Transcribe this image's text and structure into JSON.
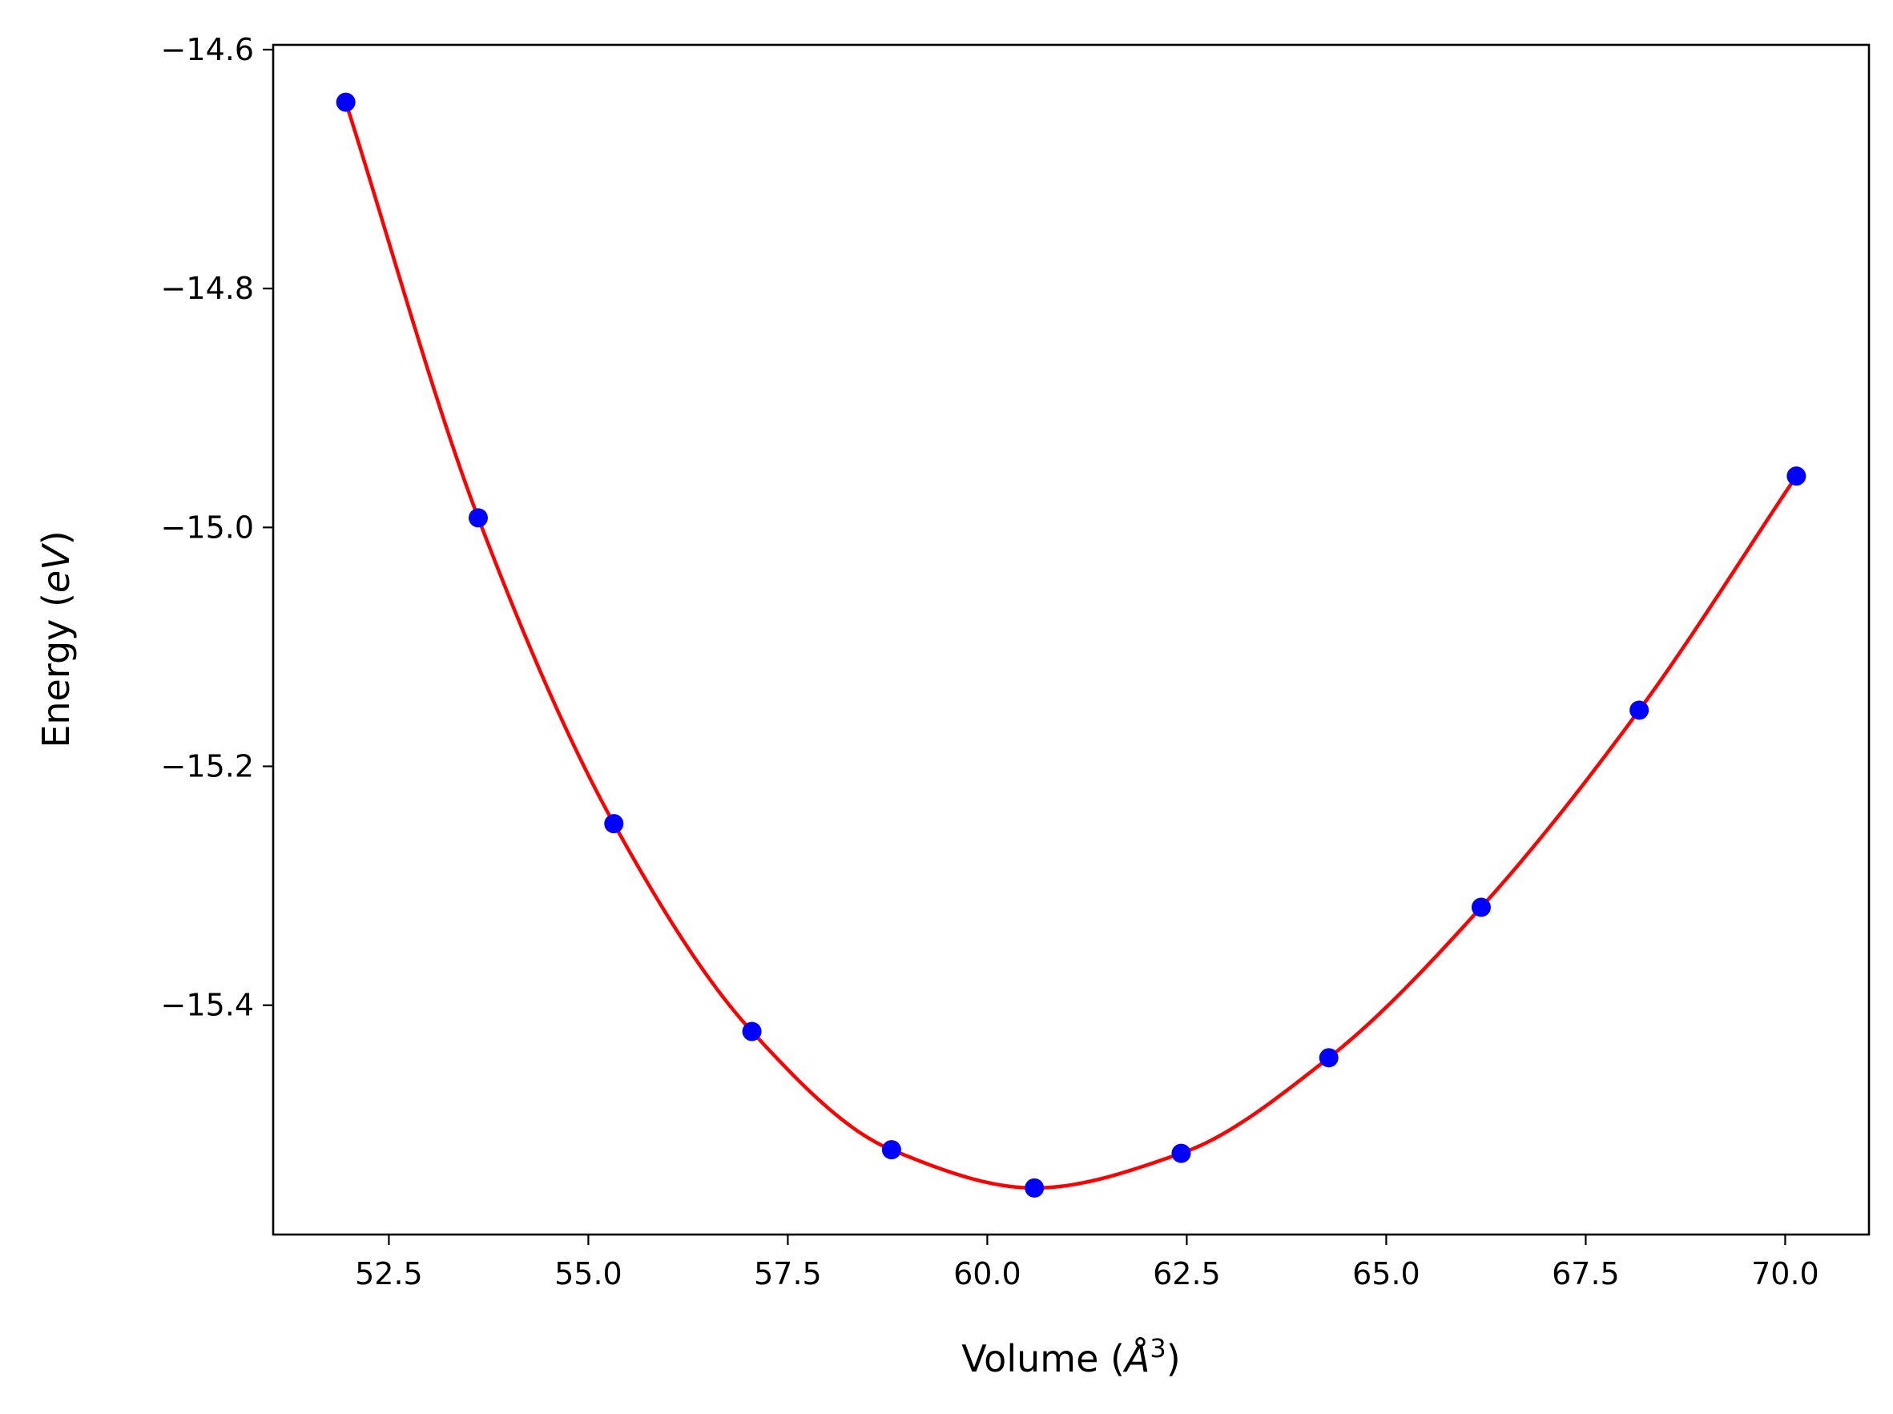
{
  "chart_data": {
    "type": "scatter",
    "title": "",
    "xlabel": {
      "prefix": "Volume (",
      "symbol": "Å",
      "sup": "3",
      "suffix": ")"
    },
    "ylabel": {
      "prefix": "Energy (",
      "unit": "eV",
      "suffix": ")"
    },
    "xlim": [
      51.05,
      71.05
    ],
    "ylim": [
      -15.592,
      -14.596
    ],
    "xticks": [
      52.5,
      55.0,
      57.5,
      60.0,
      62.5,
      65.0,
      67.5,
      70.0
    ],
    "xtick_labels": [
      "52.5",
      "55.0",
      "57.5",
      "60.0",
      "62.5",
      "65.0",
      "67.5",
      "70.0"
    ],
    "yticks": [
      -14.6,
      -14.8,
      -15.0,
      -15.2,
      -15.4
    ],
    "ytick_labels": [
      "−14.6",
      "−14.8",
      "−15.0",
      "−15.2",
      "−15.4"
    ],
    "grid": false,
    "legend": "none",
    "series": [
      {
        "kind": "points",
        "color": "#0000ff",
        "x": [
          51.96,
          53.62,
          55.32,
          57.05,
          58.8,
          60.59,
          62.43,
          64.28,
          66.19,
          68.17,
          70.14
        ],
        "y": [
          -14.644,
          -14.992,
          -15.248,
          -15.422,
          -15.521,
          -15.553,
          -15.524,
          -15.444,
          -15.318,
          -15.153,
          -14.957
        ]
      },
      {
        "kind": "fit",
        "color": "#ff0000",
        "x": [
          51.96,
          53.62,
          55.32,
          57.05,
          58.8,
          60.59,
          62.43,
          64.28,
          66.19,
          68.17,
          70.14
        ],
        "y": [
          -14.644,
          -14.992,
          -15.248,
          -15.422,
          -15.521,
          -15.553,
          -15.524,
          -15.444,
          -15.318,
          -15.153,
          -14.957
        ]
      }
    ]
  }
}
